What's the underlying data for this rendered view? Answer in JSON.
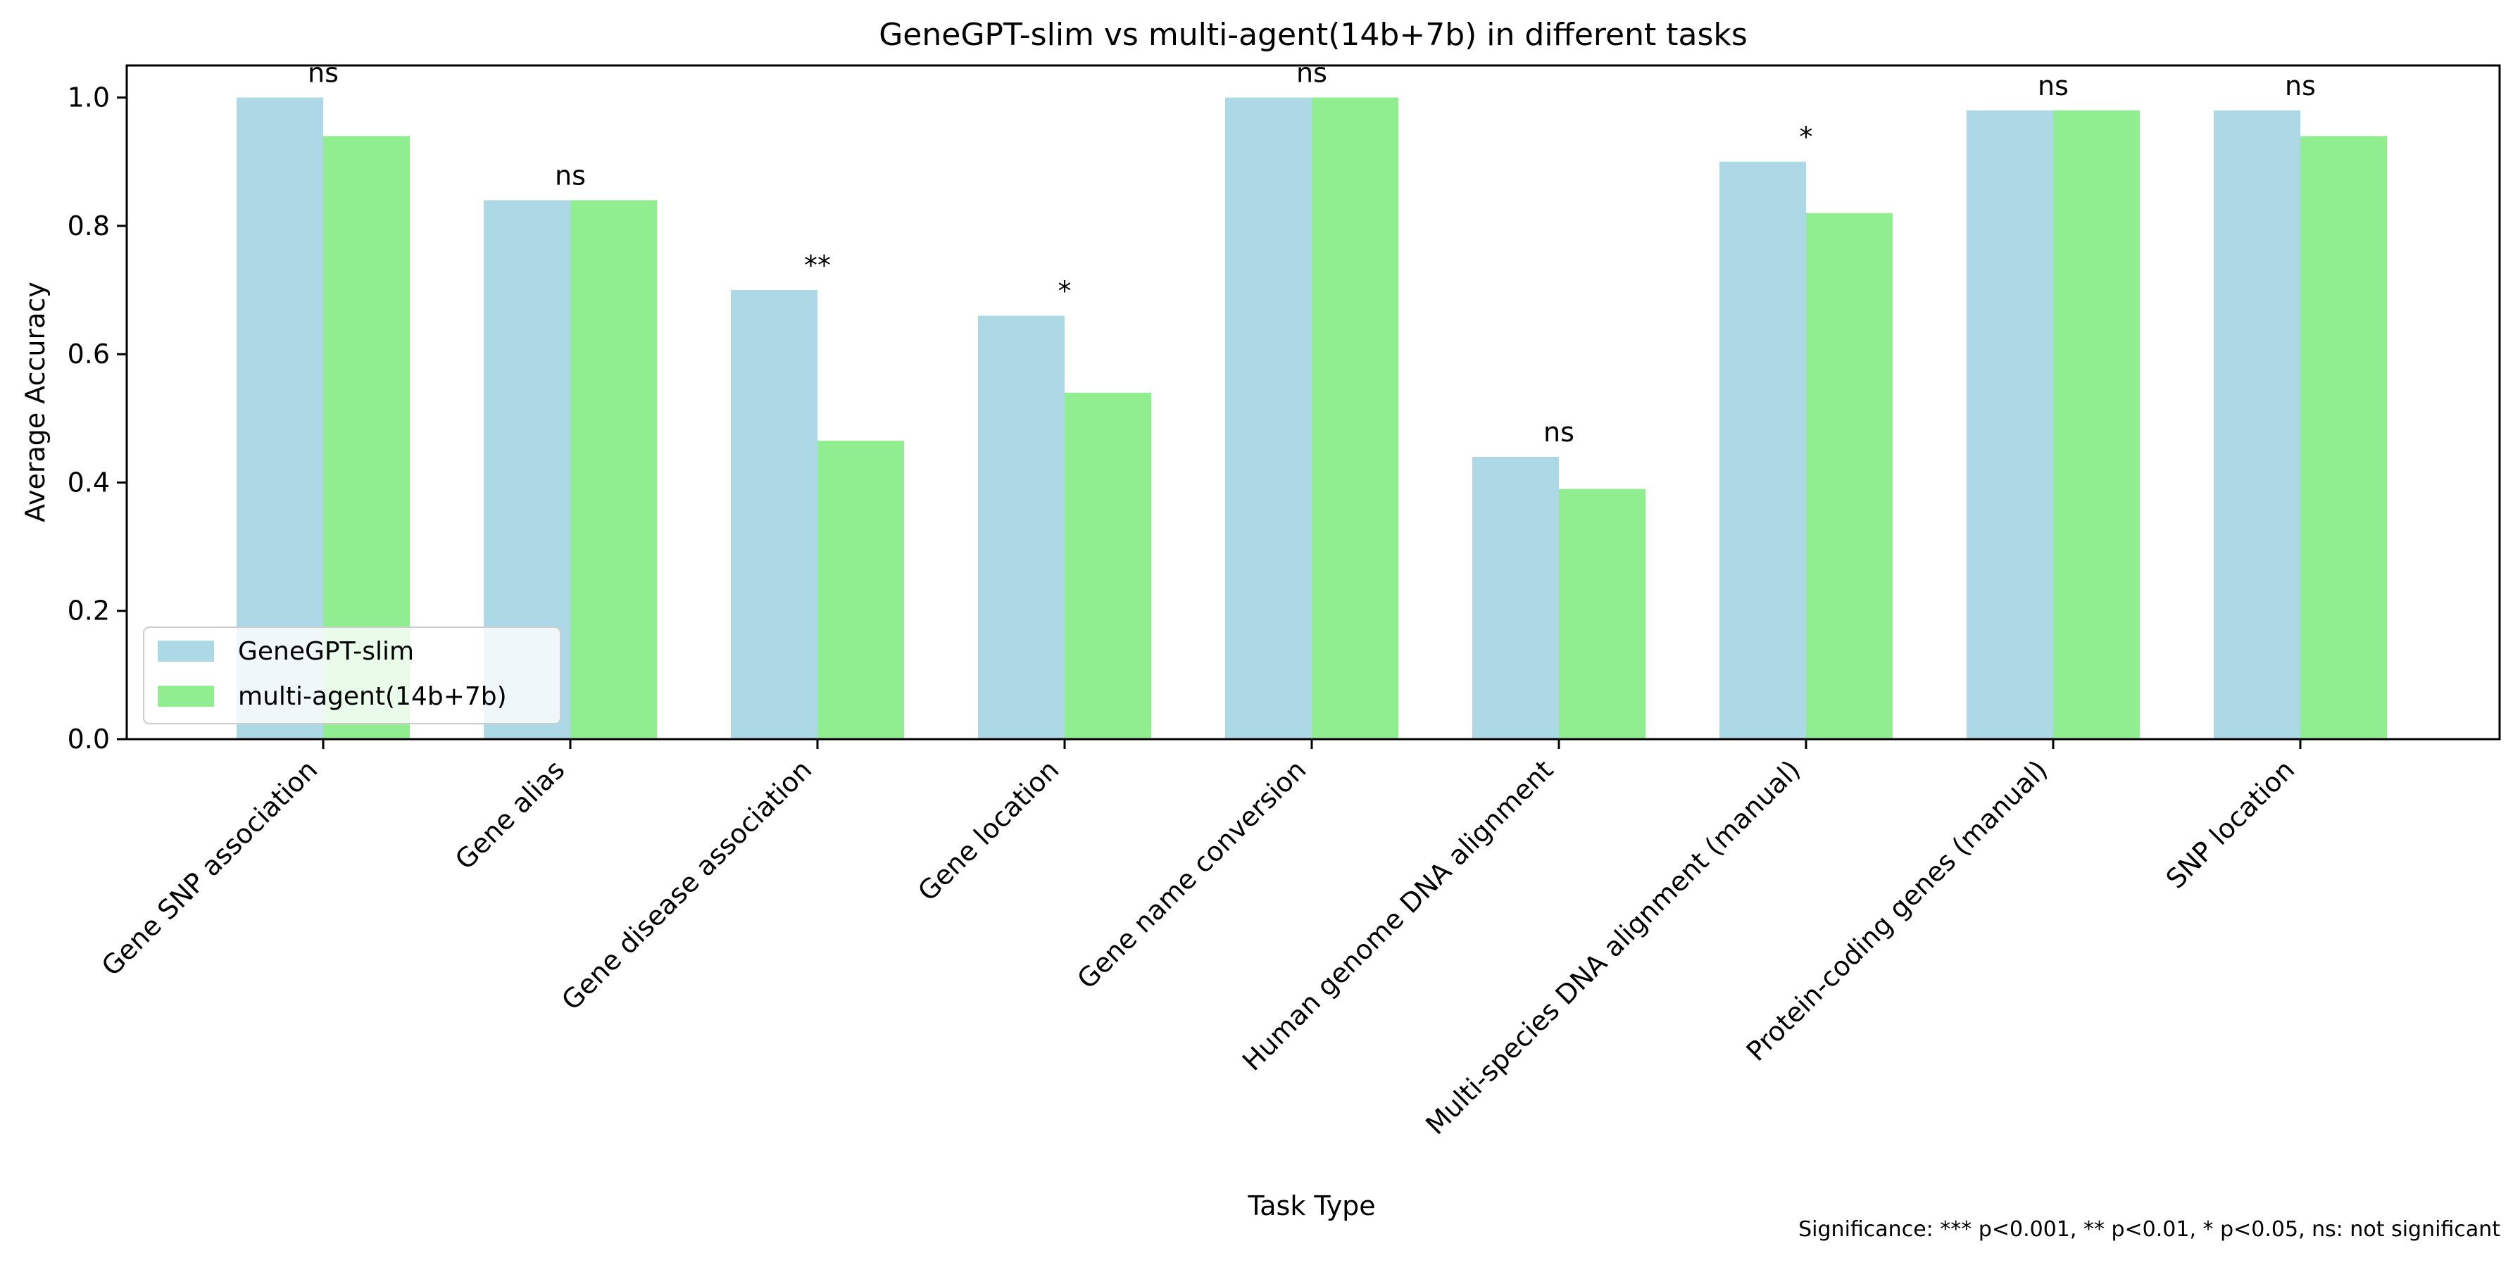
{
  "chart_data": {
    "type": "bar",
    "title": "GeneGPT-slim vs multi-agent(14b+7b) in different tasks",
    "xlabel": "Task Type",
    "ylabel": "Average Accuracy",
    "ylim": [
      0,
      1.05
    ],
    "yticks": [
      "0.0",
      "0.2",
      "0.4",
      "0.6",
      "0.8",
      "1.0"
    ],
    "grid": false,
    "legend_position": "lower-left",
    "categories": [
      "Gene SNP association",
      "Gene alias",
      "Gene disease association",
      "Gene location",
      "Gene name conversion",
      "Human genome DNA alignment",
      "Multi-species DNA alignment (manual)",
      "Protein-coding genes (manual)",
      "SNP location"
    ],
    "series": [
      {
        "name": "GeneGPT-slim",
        "color": "#add8e6",
        "values": [
          1.0,
          0.84,
          0.7,
          0.66,
          1.0,
          0.44,
          0.9,
          0.98,
          0.98
        ]
      },
      {
        "name": "multi-agent(14b+7b)",
        "color": "#90ee90",
        "values": [
          0.94,
          0.84,
          0.465,
          0.54,
          1.0,
          0.39,
          0.82,
          0.98,
          0.94
        ]
      }
    ],
    "significance": [
      "ns",
      "ns",
      "**",
      "*",
      "ns",
      "ns",
      "*",
      "ns",
      "ns"
    ],
    "footnote": "Significance: *** p<0.001, ** p<0.01, * p<0.05, ns: not significant"
  }
}
